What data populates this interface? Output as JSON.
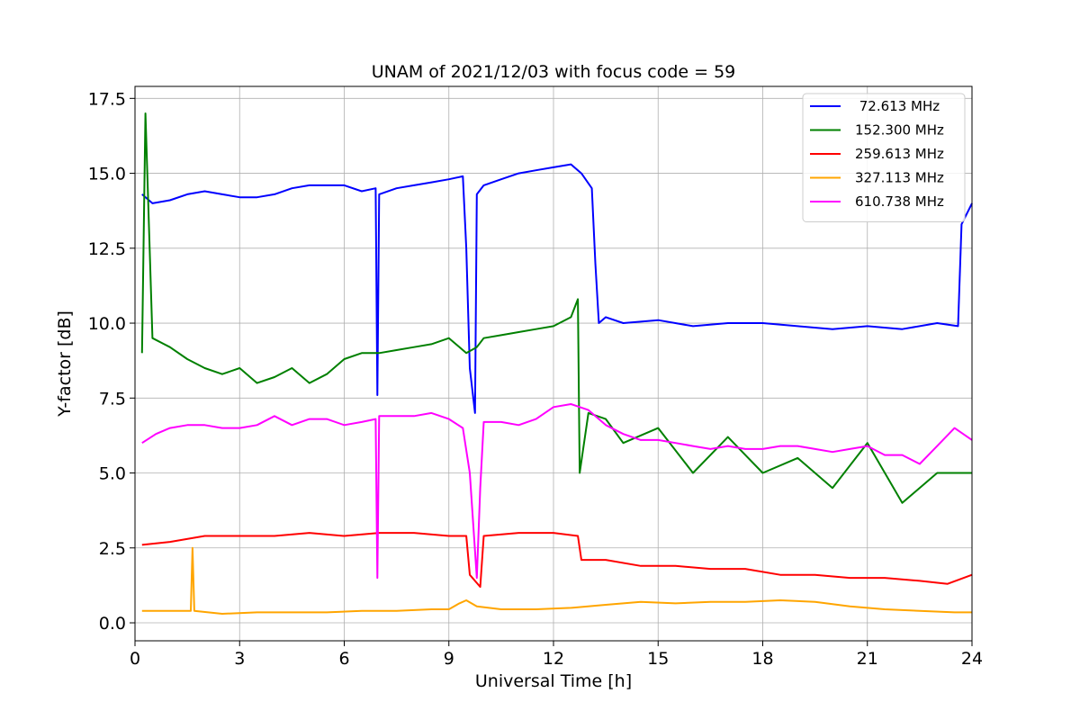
{
  "chart_data": {
    "type": "line",
    "title": "UNAM of 2021/12/03 with focus code = 59",
    "xlabel": "Universal Time [h]",
    "ylabel": "Y-factor [dB]",
    "xlim": [
      0,
      24
    ],
    "ylim": [
      -0.6,
      17.9
    ],
    "xticks": [
      0,
      3,
      6,
      9,
      12,
      15,
      18,
      21,
      24
    ],
    "xtick_labels": [
      "0",
      "3",
      "6",
      "9",
      "12",
      "15",
      "18",
      "21",
      "24"
    ],
    "yticks": [
      0,
      2.5,
      5,
      7.5,
      10,
      12.5,
      15,
      17.5
    ],
    "ytick_labels": [
      "0.0",
      "2.5",
      "5.0",
      "7.5",
      "10.0",
      "12.5",
      "15.0",
      "17.5"
    ],
    "grid": true,
    "legend_position": "top-right",
    "series": [
      {
        "name": " 72.613 MHz",
        "color": "#0000ff",
        "points": [
          [
            0.2,
            14.3
          ],
          [
            0.5,
            14.0
          ],
          [
            1.0,
            14.1
          ],
          [
            1.5,
            14.3
          ],
          [
            2.0,
            14.4
          ],
          [
            2.5,
            14.3
          ],
          [
            3.0,
            14.2
          ],
          [
            3.5,
            14.2
          ],
          [
            4.0,
            14.3
          ],
          [
            4.5,
            14.5
          ],
          [
            5.0,
            14.6
          ],
          [
            5.5,
            14.6
          ],
          [
            6.0,
            14.6
          ],
          [
            6.5,
            14.4
          ],
          [
            6.9,
            14.5
          ],
          [
            6.95,
            7.6
          ],
          [
            7.0,
            14.3
          ],
          [
            7.5,
            14.5
          ],
          [
            8.0,
            14.6
          ],
          [
            8.5,
            14.7
          ],
          [
            9.0,
            14.8
          ],
          [
            9.4,
            14.9
          ],
          [
            9.5,
            12.5
          ],
          [
            9.6,
            8.5
          ],
          [
            9.75,
            7.0
          ],
          [
            9.8,
            14.3
          ],
          [
            10.0,
            14.6
          ],
          [
            10.5,
            14.8
          ],
          [
            11.0,
            15.0
          ],
          [
            11.5,
            15.1
          ],
          [
            12.0,
            15.2
          ],
          [
            12.5,
            15.3
          ],
          [
            12.8,
            15.0
          ],
          [
            13.1,
            14.5
          ],
          [
            13.2,
            12.0
          ],
          [
            13.3,
            10.0
          ],
          [
            13.5,
            10.2
          ],
          [
            14.0,
            10.0
          ],
          [
            15.0,
            10.1
          ],
          [
            16.0,
            9.9
          ],
          [
            17.0,
            10.0
          ],
          [
            18.0,
            10.0
          ],
          [
            19.0,
            9.9
          ],
          [
            20.0,
            9.8
          ],
          [
            21.0,
            9.9
          ],
          [
            22.0,
            9.8
          ],
          [
            23.0,
            10.0
          ],
          [
            23.6,
            9.9
          ],
          [
            23.7,
            13.3
          ],
          [
            24.0,
            14.0
          ]
        ]
      },
      {
        "name": "152.300 MHz",
        "color": "#008000",
        "points": [
          [
            0.2,
            9.0
          ],
          [
            0.3,
            17.0
          ],
          [
            0.5,
            9.5
          ],
          [
            1.0,
            9.2
          ],
          [
            1.5,
            8.8
          ],
          [
            2.0,
            8.5
          ],
          [
            2.5,
            8.3
          ],
          [
            3.0,
            8.5
          ],
          [
            3.5,
            8.0
          ],
          [
            4.0,
            8.2
          ],
          [
            4.5,
            8.5
          ],
          [
            5.0,
            8.0
          ],
          [
            5.5,
            8.3
          ],
          [
            6.0,
            8.8
          ],
          [
            6.5,
            9.0
          ],
          [
            7.0,
            9.0
          ],
          [
            7.5,
            9.1
          ],
          [
            8.0,
            9.2
          ],
          [
            8.5,
            9.3
          ],
          [
            9.0,
            9.5
          ],
          [
            9.5,
            9.0
          ],
          [
            9.8,
            9.2
          ],
          [
            10.0,
            9.5
          ],
          [
            10.5,
            9.6
          ],
          [
            11.0,
            9.7
          ],
          [
            11.5,
            9.8
          ],
          [
            12.0,
            9.9
          ],
          [
            12.5,
            10.2
          ],
          [
            12.7,
            10.8
          ],
          [
            12.75,
            5.0
          ],
          [
            13.0,
            7.0
          ],
          [
            13.5,
            6.8
          ],
          [
            14.0,
            6.0
          ],
          [
            15.0,
            6.5
          ],
          [
            16.0,
            5.0
          ],
          [
            17.0,
            6.2
          ],
          [
            18.0,
            5.0
          ],
          [
            19.0,
            5.5
          ],
          [
            20.0,
            4.5
          ],
          [
            21.0,
            6.0
          ],
          [
            22.0,
            4.0
          ],
          [
            23.0,
            5.0
          ],
          [
            24.0,
            5.0
          ]
        ]
      },
      {
        "name": "259.613 MHz",
        "color": "#ff0000",
        "points": [
          [
            0.2,
            2.6
          ],
          [
            1.0,
            2.7
          ],
          [
            2.0,
            2.9
          ],
          [
            3.0,
            2.9
          ],
          [
            4.0,
            2.9
          ],
          [
            5.0,
            3.0
          ],
          [
            6.0,
            2.9
          ],
          [
            7.0,
            3.0
          ],
          [
            8.0,
            3.0
          ],
          [
            9.0,
            2.9
          ],
          [
            9.5,
            2.9
          ],
          [
            9.6,
            1.6
          ],
          [
            9.9,
            1.2
          ],
          [
            10.0,
            2.9
          ],
          [
            11.0,
            3.0
          ],
          [
            12.0,
            3.0
          ],
          [
            12.7,
            2.9
          ],
          [
            12.8,
            2.1
          ],
          [
            13.5,
            2.1
          ],
          [
            14.5,
            1.9
          ],
          [
            15.5,
            1.9
          ],
          [
            16.5,
            1.8
          ],
          [
            17.5,
            1.8
          ],
          [
            18.5,
            1.6
          ],
          [
            19.5,
            1.6
          ],
          [
            20.5,
            1.5
          ],
          [
            21.5,
            1.5
          ],
          [
            22.5,
            1.4
          ],
          [
            23.3,
            1.3
          ],
          [
            24.0,
            1.6
          ]
        ]
      },
      {
        "name": "327.113 MHz",
        "color": "#ffa500",
        "points": [
          [
            0.2,
            0.4
          ],
          [
            1.0,
            0.4
          ],
          [
            1.6,
            0.4
          ],
          [
            1.65,
            2.5
          ],
          [
            1.7,
            0.4
          ],
          [
            2.5,
            0.3
          ],
          [
            3.5,
            0.35
          ],
          [
            4.5,
            0.35
          ],
          [
            5.5,
            0.35
          ],
          [
            6.5,
            0.4
          ],
          [
            7.5,
            0.4
          ],
          [
            8.5,
            0.45
          ],
          [
            9.0,
            0.45
          ],
          [
            9.3,
            0.65
          ],
          [
            9.5,
            0.75
          ],
          [
            9.8,
            0.55
          ],
          [
            10.5,
            0.45
          ],
          [
            11.5,
            0.45
          ],
          [
            12.5,
            0.5
          ],
          [
            13.5,
            0.6
          ],
          [
            14.5,
            0.7
          ],
          [
            15.5,
            0.65
          ],
          [
            16.5,
            0.7
          ],
          [
            17.5,
            0.7
          ],
          [
            18.5,
            0.75
          ],
          [
            19.5,
            0.7
          ],
          [
            20.5,
            0.55
          ],
          [
            21.5,
            0.45
          ],
          [
            22.5,
            0.4
          ],
          [
            23.5,
            0.35
          ],
          [
            24.0,
            0.35
          ]
        ]
      },
      {
        "name": "610.738 MHz",
        "color": "#ff00ff",
        "points": [
          [
            0.2,
            6.0
          ],
          [
            0.6,
            6.3
          ],
          [
            1.0,
            6.5
          ],
          [
            1.5,
            6.6
          ],
          [
            2.0,
            6.6
          ],
          [
            2.5,
            6.5
          ],
          [
            3.0,
            6.5
          ],
          [
            3.5,
            6.6
          ],
          [
            4.0,
            6.9
          ],
          [
            4.5,
            6.6
          ],
          [
            5.0,
            6.8
          ],
          [
            5.5,
            6.8
          ],
          [
            6.0,
            6.6
          ],
          [
            6.5,
            6.7
          ],
          [
            6.9,
            6.8
          ],
          [
            6.95,
            1.5
          ],
          [
            7.0,
            6.9
          ],
          [
            7.5,
            6.9
          ],
          [
            8.0,
            6.9
          ],
          [
            8.5,
            7.0
          ],
          [
            9.0,
            6.8
          ],
          [
            9.4,
            6.5
          ],
          [
            9.6,
            5.0
          ],
          [
            9.8,
            1.5
          ],
          [
            9.9,
            4.5
          ],
          [
            10.0,
            6.7
          ],
          [
            10.5,
            6.7
          ],
          [
            11.0,
            6.6
          ],
          [
            11.5,
            6.8
          ],
          [
            12.0,
            7.2
          ],
          [
            12.5,
            7.3
          ],
          [
            13.0,
            7.1
          ],
          [
            13.5,
            6.6
          ],
          [
            14.0,
            6.3
          ],
          [
            14.5,
            6.1
          ],
          [
            15.0,
            6.1
          ],
          [
            15.5,
            6.0
          ],
          [
            16.0,
            5.9
          ],
          [
            16.5,
            5.8
          ],
          [
            17.0,
            5.9
          ],
          [
            17.5,
            5.8
          ],
          [
            18.0,
            5.8
          ],
          [
            18.5,
            5.9
          ],
          [
            19.0,
            5.9
          ],
          [
            19.5,
            5.8
          ],
          [
            20.0,
            5.7
          ],
          [
            20.5,
            5.8
          ],
          [
            21.0,
            5.9
          ],
          [
            21.5,
            5.6
          ],
          [
            22.0,
            5.6
          ],
          [
            22.5,
            5.3
          ],
          [
            23.0,
            5.9
          ],
          [
            23.5,
            6.5
          ],
          [
            24.0,
            6.1
          ]
        ]
      }
    ]
  }
}
